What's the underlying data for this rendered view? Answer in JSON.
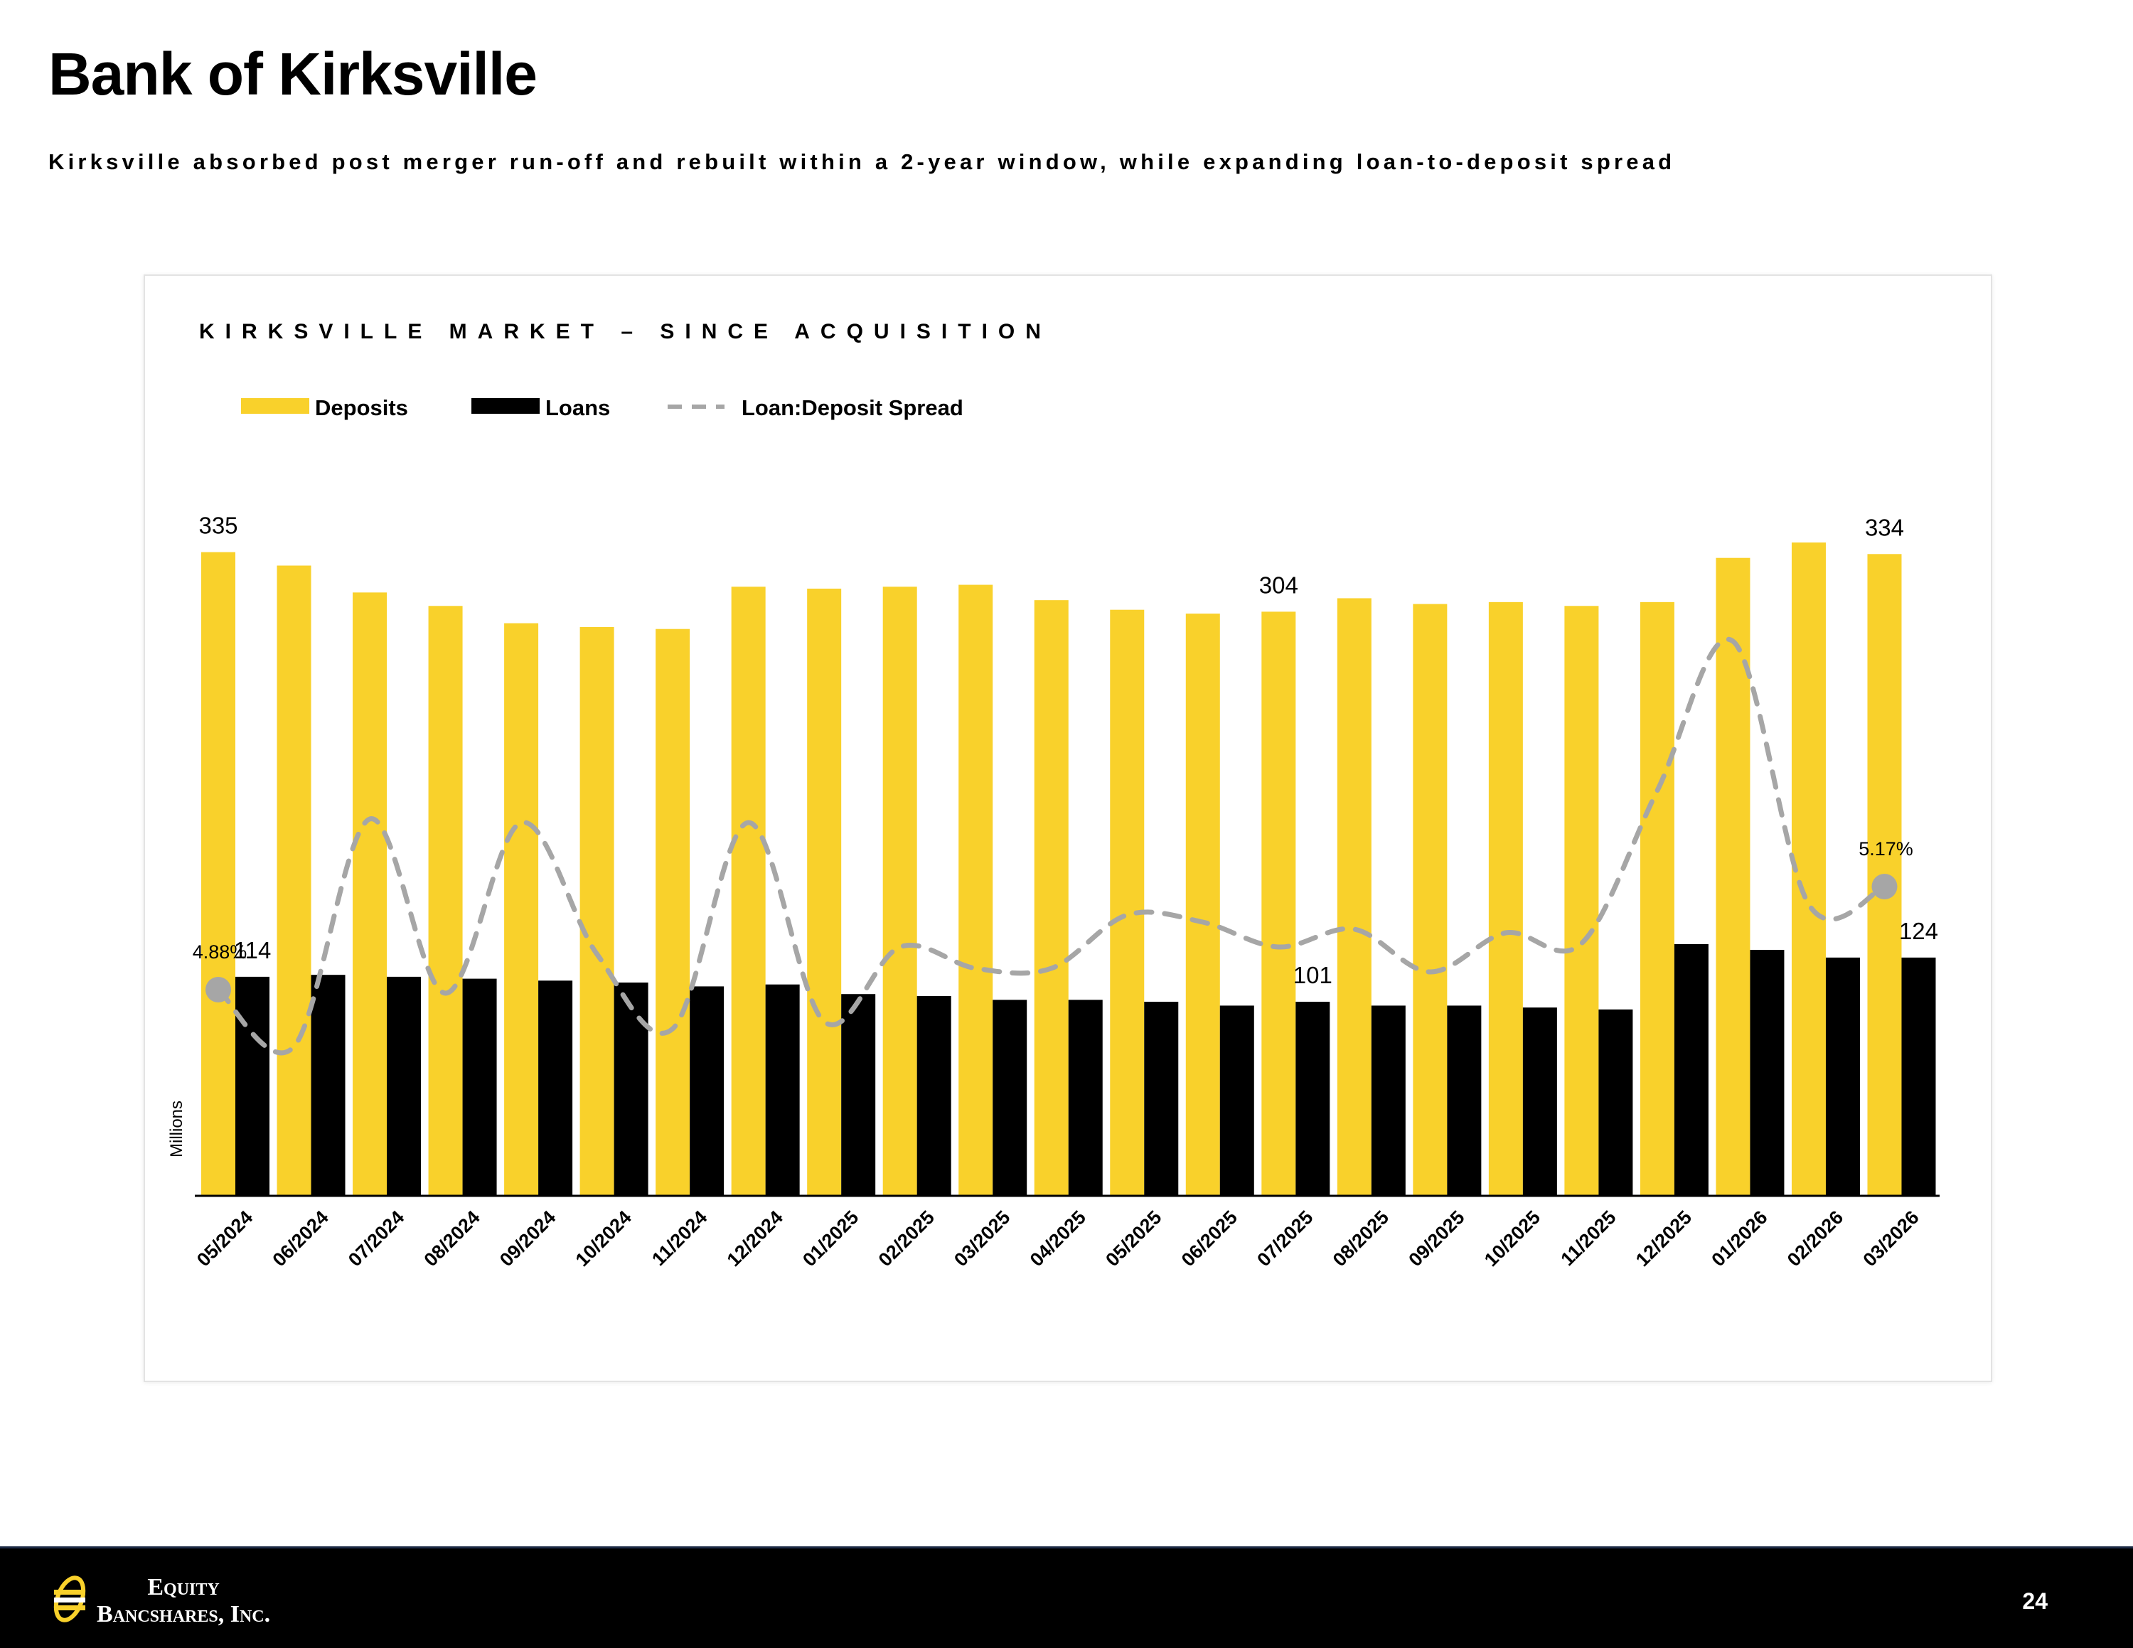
{
  "header": {
    "title": "Bank of Kirksville",
    "subtitle": "Kirksville absorbed post merger run-off and rebuilt within a 2-year window, while expanding loan-to-deposit spread"
  },
  "chart_data": {
    "type": "bar",
    "title": "KIRKSVILLE MARKET – SINCE ACQUISITION",
    "ylabel": "Millions",
    "categories": [
      "05/2024",
      "06/2024",
      "07/2024",
      "08/2024",
      "09/2024",
      "10/2024",
      "11/2024",
      "12/2024",
      "01/2025",
      "02/2025",
      "03/2025",
      "04/2025",
      "05/2025",
      "06/2025",
      "07/2025",
      "08/2025",
      "09/2025",
      "10/2025",
      "11/2025",
      "12/2025",
      "01/2026",
      "02/2026",
      "03/2026"
    ],
    "ylim": [
      0,
      370
    ],
    "series": [
      {
        "name": "Deposits",
        "kind": "bar",
        "color": "#F9D12B",
        "values": [
          335,
          328,
          314,
          307,
          298,
          296,
          295,
          317,
          316,
          317,
          318,
          310,
          305,
          303,
          304,
          311,
          308,
          309,
          307,
          309,
          332,
          340,
          334
        ]
      },
      {
        "name": "Loans",
        "kind": "bar",
        "color": "#000000",
        "values": [
          114,
          115,
          114,
          113,
          112,
          111,
          109,
          110,
          105,
          104,
          102,
          102,
          101,
          99,
          101,
          99,
          99,
          98,
          97,
          131,
          128,
          124,
          124
        ]
      },
      {
        "name": "Loan:Deposit Spread",
        "kind": "line",
        "style": "dashed",
        "color": "#A6A6A6",
        "unit": "%",
        "values": [
          4.88,
          4.72,
          5.36,
          4.87,
          5.35,
          4.98,
          4.77,
          5.35,
          4.79,
          5.0,
          4.94,
          4.94,
          5.09,
          5.07,
          5.0,
          5.05,
          4.93,
          5.04,
          5.01,
          5.44,
          5.86,
          5.12,
          5.17
        ]
      }
    ],
    "spread_ylim": [
      4.3,
      6.3
    ],
    "data_labels": {
      "deposits": [
        {
          "index": 0,
          "text": "335"
        },
        {
          "index": 14,
          "text": "304"
        },
        {
          "index": 22,
          "text": "334"
        }
      ],
      "loans": [
        {
          "index": 0,
          "text": "114"
        },
        {
          "index": 14,
          "text": "101"
        },
        {
          "index": 22,
          "text": "124"
        }
      ],
      "spread": [
        {
          "index": 0,
          "text": "4.88%"
        },
        {
          "index": 22,
          "text": "5.17%"
        }
      ]
    },
    "legend_position": "top-left",
    "grid": false
  },
  "footer": {
    "logo_line1": "Equity",
    "logo_line2": "Bancshares, Inc.",
    "page_number": "24"
  }
}
